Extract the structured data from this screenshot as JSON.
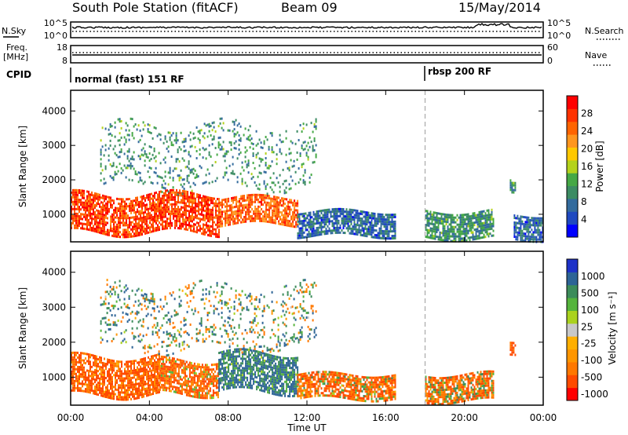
{
  "header": {
    "title": "South Pole Station (fitACF)",
    "beam": "Beam 09",
    "date": "15/May/2014"
  },
  "noise_panel": {
    "left_label": "N.Sky",
    "right_label": "N.Search",
    "ticks_left": [
      "10^5",
      "10^0"
    ],
    "ticks_right": [
      "10^5",
      "10^0"
    ]
  },
  "freq_panel": {
    "left_label_1": "Freq.",
    "left_label_2": "[MHz]",
    "right_label": "Nave",
    "left_ticks": [
      "18",
      "8"
    ],
    "right_ticks": [
      "60",
      "0"
    ]
  },
  "cpid_panel": {
    "label": "CPID",
    "modes": [
      {
        "name": "normal (fast) 151 RF",
        "start_hour": 0
      },
      {
        "name": "rbsp 200 RF",
        "start_hour": 18
      }
    ]
  },
  "colors": {
    "power": [
      "#0000ff",
      "#1f49c0",
      "#336b9d",
      "#3c8c63",
      "#45a845",
      "#b4d21b",
      "#ffc800",
      "#ff961e",
      "#ff6400",
      "#ff3200",
      "#ff0000"
    ],
    "velocity": [
      "#ff0000",
      "#ff4b00",
      "#ff7800",
      "#ff9600",
      "#ffaf00",
      "#c8c8c8",
      "#aad21e",
      "#55b43c",
      "#3c8c5a",
      "#2d6496",
      "#1e32c8"
    ]
  },
  "chart_data": [
    {
      "type": "heatmap",
      "title": "",
      "xlabel": "Time UT",
      "ylabel": "Slant Range [km]",
      "xlim": [
        "00:00",
        "00:00"
      ],
      "x_ticks": [
        "00:00",
        "04:00",
        "08:00",
        "12:00",
        "16:00",
        "20:00",
        "00:00"
      ],
      "ylim": [
        200,
        4600
      ],
      "y_ticks": [
        1000,
        2000,
        3000,
        4000
      ],
      "colorbar": {
        "label": "Power [dB]",
        "range": [
          0,
          32
        ],
        "ticks": [
          4,
          8,
          12,
          16,
          20,
          24,
          28
        ]
      },
      "mode_change_hour": 18,
      "echo_regions": [
        {
          "t_start": 0.0,
          "t_end": 7.5,
          "range_km": [
            500,
            1600
          ],
          "value_db": 28
        },
        {
          "t_start": 7.5,
          "t_end": 11.5,
          "range_km": [
            700,
            1500
          ],
          "value_db": 26
        },
        {
          "t_start": 11.5,
          "t_end": 16.5,
          "range_km": [
            400,
            1100
          ],
          "value_db": 6
        },
        {
          "t_start": 1.5,
          "t_end": 12.5,
          "range_km": [
            1800,
            3600
          ],
          "value_db": 10
        },
        {
          "t_start": 18.0,
          "t_end": 21.5,
          "range_km": [
            300,
            1100
          ],
          "value_db": 10
        },
        {
          "t_start": 22.5,
          "t_end": 24.0,
          "range_km": [
            300,
            1000
          ],
          "value_db": 6
        },
        {
          "t_start": 22.3,
          "t_end": 22.6,
          "range_km": [
            1650,
            2050
          ],
          "value_db": 10
        }
      ]
    },
    {
      "type": "heatmap",
      "title": "",
      "xlabel": "Time UT",
      "ylabel": "Slant Range [km]",
      "xlim": [
        "00:00",
        "00:00"
      ],
      "x_ticks": [
        "00:00",
        "04:00",
        "08:00",
        "12:00",
        "16:00",
        "20:00",
        "00:00"
      ],
      "ylim": [
        200,
        4600
      ],
      "y_ticks": [
        1000,
        2000,
        3000,
        4000
      ],
      "colorbar": {
        "label": "Velocity [m s⁻¹]",
        "tick_labels": [
          "1000",
          "500",
          "100",
          "25",
          "-25",
          "-100",
          "-500",
          "-1000"
        ]
      },
      "mode_change_hour": 18,
      "echo_regions": [
        {
          "t_start": 0.0,
          "t_end": 4.5,
          "range_km": [
            500,
            1600
          ],
          "velocity": -150
        },
        {
          "t_start": 4.5,
          "t_end": 7.5,
          "range_km": [
            500,
            1500
          ],
          "velocity": -120
        },
        {
          "t_start": 7.5,
          "t_end": 11.5,
          "range_km": [
            600,
            1700
          ],
          "velocity": 150
        },
        {
          "t_start": 11.5,
          "t_end": 16.5,
          "range_km": [
            400,
            1100
          ],
          "velocity": -100
        },
        {
          "t_start": 1.5,
          "t_end": 12.5,
          "range_km": [
            1800,
            3600
          ],
          "velocity": 50
        },
        {
          "t_start": 18.0,
          "t_end": 21.5,
          "range_km": [
            300,
            1100
          ],
          "velocity": -80
        },
        {
          "t_start": 22.3,
          "t_end": 22.6,
          "range_km": [
            1650,
            2050
          ],
          "velocity": -200
        }
      ]
    }
  ]
}
